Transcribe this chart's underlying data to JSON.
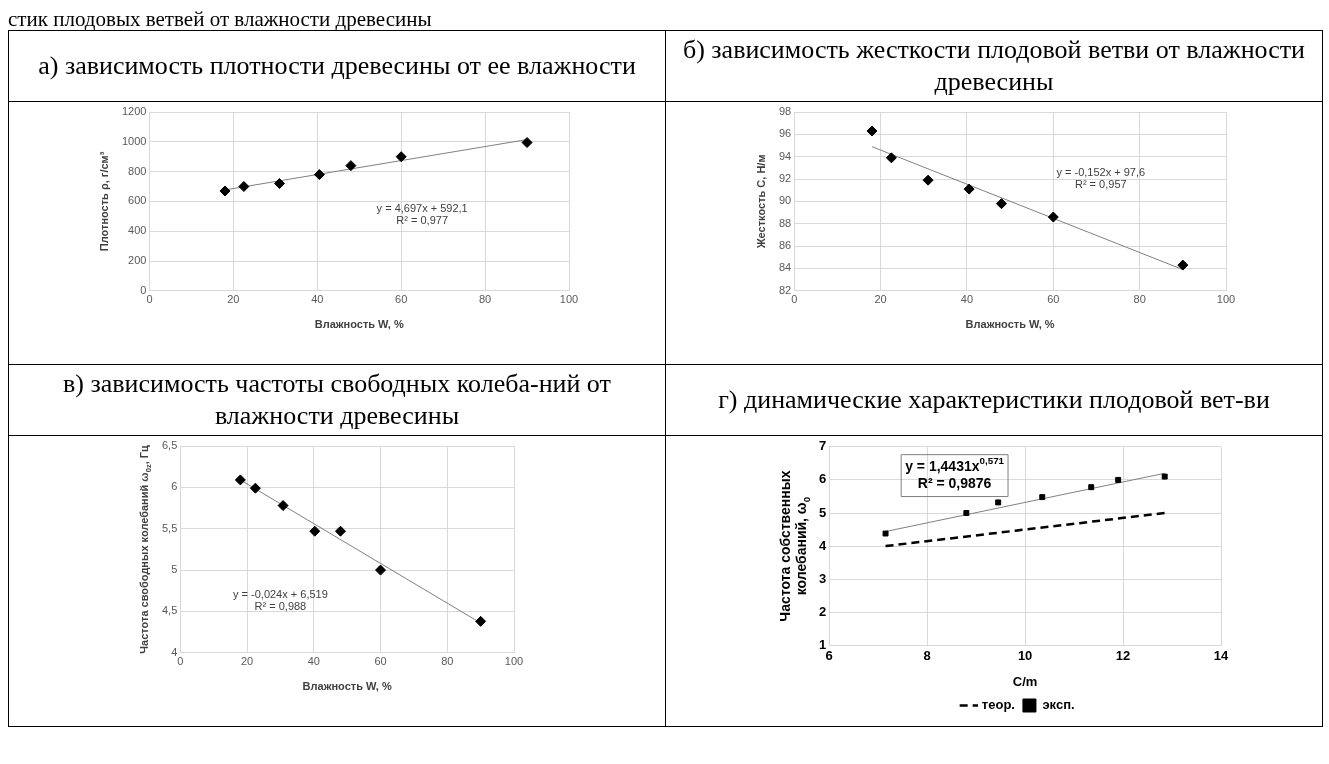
{
  "chart_data": [
    {
      "type": "scatter",
      "subtitle": "стик плодовых ветвей от влажности древесины",
      "title": "а) зависимость плотности древесины от ее влажности",
      "xlabel": "Влажность W, %",
      "ylabel": "Плотность ρ, г/см³",
      "x": [
        18,
        22.5,
        31,
        40.5,
        48,
        60,
        90
      ],
      "xlim": [
        0,
        100
      ],
      "xticks": [
        0,
        20,
        40,
        60,
        80,
        100
      ],
      "ylim": [
        0,
        1200
      ],
      "yticks": [
        0,
        200,
        400,
        600,
        800,
        1000,
        1200
      ],
      "grid": true,
      "annotations": [
        "y = 4,697x + 592,1",
        "R² = 0,977"
      ],
      "series": [
        {
          "type": "scatter",
          "color": "#000000",
          "marker": "diamond",
          "values": [
            670,
            700,
            720,
            780,
            840,
            900,
            995
          ]
        },
        {
          "type": "line",
          "color": "#808080",
          "marker": "none",
          "x": [
            18,
            90
          ],
          "values": [
            677,
            1015
          ]
        }
      ]
    },
    {
      "type": "scatter",
      "title": "б) зависимость жесткости плодовой ветви от влажности древесины",
      "xlabel": "Влажность W, %",
      "ylabel": "Жесткость С, Н/м",
      "x": [
        18,
        22.5,
        31,
        40.5,
        48,
        60,
        90
      ],
      "xlim": [
        0,
        100
      ],
      "xticks": [
        0,
        20,
        40,
        60,
        80,
        100
      ],
      "ylim": [
        82,
        98
      ],
      "yticks": [
        82,
        84,
        86,
        88,
        90,
        92,
        94,
        96,
        98
      ],
      "grid": true,
      "annotations": [
        "y = -0,152x + 97,6",
        "R² = 0,957"
      ],
      "series": [
        {
          "type": "scatter",
          "color": "#000000",
          "marker": "diamond",
          "values": [
            96.3,
            93.9,
            91.9,
            91.1,
            89.8,
            88.6,
            84.3
          ]
        },
        {
          "type": "line",
          "color": "#808080",
          "marker": "none",
          "x": [
            18,
            90
          ],
          "values": [
            94.9,
            83.9
          ]
        }
      ]
    },
    {
      "type": "scatter",
      "title": "в) зависимость частоты свободных колеба-ний от влажности древесины",
      "xlabel": "Влажность W, %",
      "ylabel": "Частота свободных колебаний ω$_{0z}$, Гц",
      "x": [
        18,
        22.5,
        30.8,
        40.3,
        48,
        60,
        90
      ],
      "xlim": [
        0,
        100
      ],
      "xticks": [
        0,
        20,
        40,
        60,
        80,
        100
      ],
      "ylim": [
        4,
        6.5
      ],
      "yticks": [
        4,
        {
          "value": 4.5,
          "label": "4,5"
        },
        5,
        {
          "value": 5.5,
          "label": "5,5"
        },
        6,
        {
          "value": 6.5,
          "label": "6,5"
        }
      ],
      "grid": true,
      "annotations": [
        "y = -0,024x + 6,519",
        "R² = 0,988"
      ],
      "series": [
        {
          "type": "scatter",
          "color": "#000000",
          "marker": "diamond",
          "values": [
            6.09,
            5.99,
            5.78,
            5.47,
            5.47,
            5.0,
            4.38
          ]
        },
        {
          "type": "line",
          "color": "#808080",
          "marker": "none",
          "x": [
            18,
            90
          ],
          "values": [
            6.09,
            4.36
          ]
        }
      ]
    },
    {
      "type": "scatter",
      "title": "г) динамические характеристики плодовой вет-ви",
      "xlabel": "C/m",
      "ylabel": "Частота собственных колебаний, ω$_{0}$",
      "x": [
        7.15,
        8.8,
        9.45,
        10.35,
        11.35,
        11.9,
        12.85
      ],
      "xlim": [
        6,
        14
      ],
      "xticks": [
        6,
        8,
        10,
        12,
        14
      ],
      "ylim": [
        1,
        7
      ],
      "yticks": [
        1,
        2,
        3,
        4,
        5,
        6,
        7
      ],
      "grid": true,
      "legend": "bottom",
      "annotations": [
        "y = 1,4431x$^{0,571}$",
        "R² = 0,9876"
      ],
      "series": [
        {
          "type": "line",
          "name": "теор.",
          "color": "#000000",
          "marker": "none",
          "line_style": "dashed",
          "x": [
            7.15,
            12.85
          ],
          "values": [
            4.0,
            5.0
          ]
        },
        {
          "type": "scatter",
          "name": "эксп.",
          "color": "#000000",
          "marker": "square",
          "values": [
            4.38,
            5.0,
            5.32,
            5.48,
            5.78,
            6.0,
            6.1
          ]
        },
        {
          "type": "line",
          "color": "#808080",
          "marker": "none",
          "x": [
            7.15,
            12.85
          ],
          "values": [
            4.44,
            6.2
          ]
        }
      ]
    }
  ]
}
